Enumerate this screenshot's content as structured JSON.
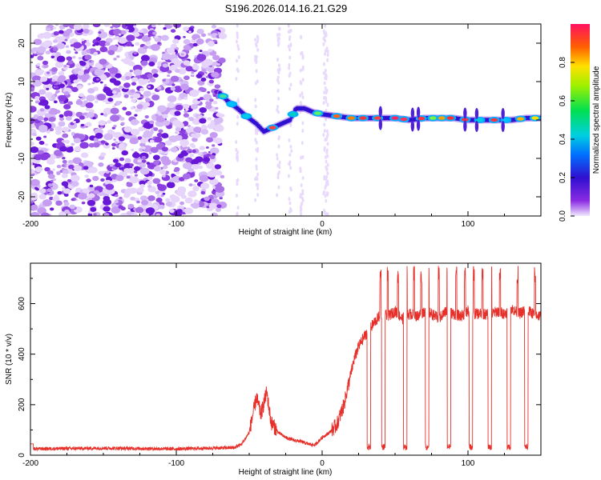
{
  "chart_data": [
    {
      "type": "heatmap",
      "title": "S196.2026.014.16.21.G29",
      "xlabel": "Height of straight line (km)",
      "ylabel": "Frequency (Hz)",
      "xlim": [
        -200,
        150
      ],
      "ylim": [
        -25,
        25
      ],
      "xticks": [
        -200,
        -100,
        0,
        100
      ],
      "yticks": [
        20,
        10,
        0,
        -10,
        -20
      ],
      "colorbar": {
        "label": "Normalized spectral amplitude",
        "range": [
          0,
          1
        ],
        "ticks": [
          0.0,
          0.2,
          0.4,
          0.6,
          0.8
        ]
      },
      "ridge": {
        "description_x": [
          -70,
          -65,
          -58,
          -52,
          -45,
          -40,
          -34,
          -28,
          -22,
          -18,
          -12,
          -6,
          0,
          10,
          20,
          30,
          40,
          50,
          60,
          70,
          80,
          90,
          100,
          110,
          120,
          130,
          140,
          150
        ],
        "freq": [
          7,
          5,
          3,
          1,
          -1,
          -3,
          -2,
          -1,
          0,
          3,
          3,
          2,
          1.5,
          1,
          0.5,
          0.5,
          0.5,
          0.5,
          0,
          0.5,
          0.5,
          0.5,
          0,
          0,
          0,
          0,
          0.5,
          0.5
        ]
      },
      "noise_x_range": [
        -200,
        -68
      ]
    },
    {
      "type": "line",
      "xlabel": "Height of straight line (km)",
      "ylabel": "SNR (10 * v/v)",
      "xlim": [
        -200,
        150
      ],
      "ylim": [
        0,
        760
      ],
      "xticks": [
        -200,
        -100,
        0,
        100
      ],
      "yticks": [
        0,
        200,
        400,
        600
      ],
      "color": "#e8302a",
      "series": [
        {
          "name": "SNR",
          "x": [
            -200,
            -150,
            -100,
            -60,
            -55,
            -50,
            -45,
            -42,
            -38,
            -35,
            -30,
            -25,
            -20,
            -15,
            -10,
            -5,
            0,
            5,
            10,
            15,
            18,
            20,
            22,
            25,
            28,
            30,
            33,
            35,
            38,
            40,
            45,
            50,
            55,
            60,
            65,
            70,
            75,
            80,
            85,
            90,
            95,
            100,
            105,
            110,
            115,
            120,
            125,
            130,
            135,
            140,
            145,
            150
          ],
          "y": [
            25,
            28,
            25,
            30,
            45,
            90,
            230,
            160,
            250,
            130,
            90,
            70,
            60,
            55,
            45,
            40,
            70,
            90,
            120,
            200,
            280,
            330,
            380,
            430,
            460,
            480,
            500,
            520,
            540,
            560,
            550,
            570,
            540,
            560,
            550,
            570,
            560,
            540,
            570,
            560,
            550,
            570,
            560,
            560,
            555,
            570,
            560,
            580,
            560,
            575,
            560,
            550
          ]
        }
      ],
      "spikes_x": [
        40,
        45,
        52,
        58,
        63,
        68,
        73,
        80,
        86,
        92,
        98,
        104,
        110,
        116,
        122,
        128,
        134,
        140,
        146
      ],
      "dropouts_x": [
        32,
        42,
        57,
        72,
        87,
        102,
        115,
        128,
        140
      ]
    }
  ]
}
